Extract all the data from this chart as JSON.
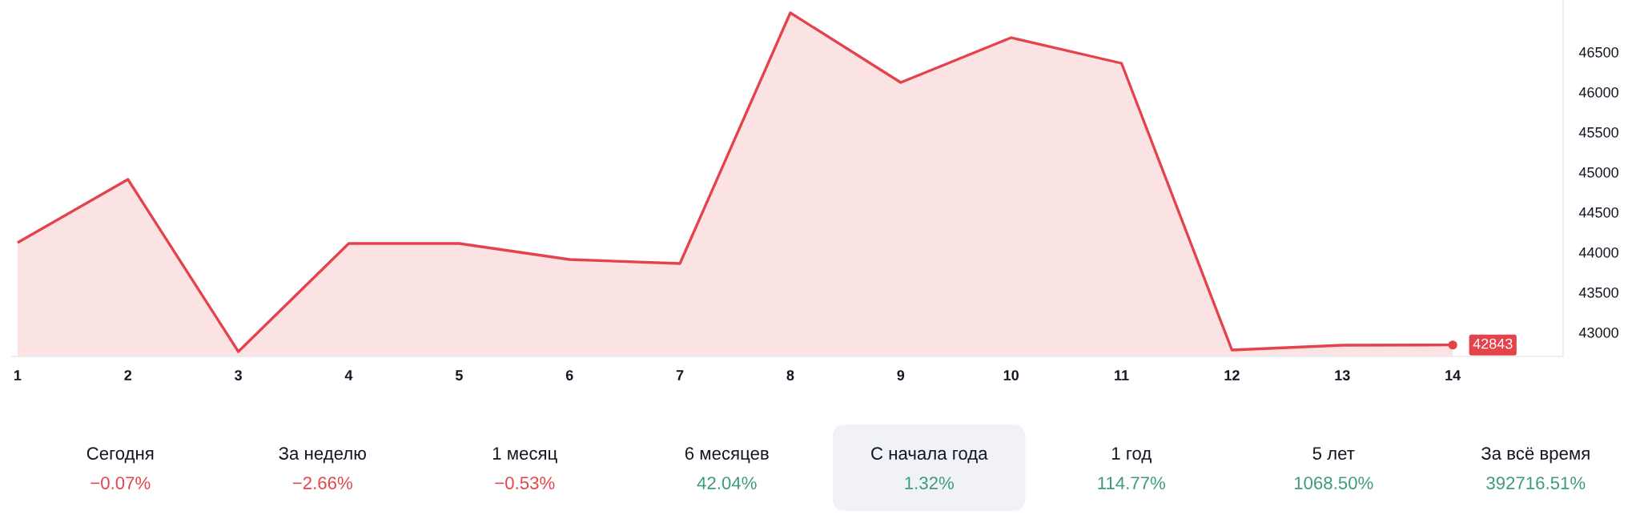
{
  "chart_data": [
    {
      "type": "area",
      "x": [
        1,
        2,
        3,
        4,
        5,
        6,
        7,
        8,
        9,
        10,
        11,
        12,
        13,
        14
      ],
      "series": [
        {
          "type": "area",
          "color": "#e5434b",
          "values": [
            44120,
            44910,
            42760,
            44110,
            44110,
            43910,
            43860,
            46990,
            46120,
            46680,
            46360,
            42780,
            42840,
            42843
          ],
          "value_labels": [
            null,
            null,
            null,
            null,
            null,
            null,
            null,
            null,
            null,
            null,
            null,
            null,
            null,
            "42843"
          ]
        }
      ],
      "xlim": [
        0.95,
        15
      ],
      "xticks": [
        1,
        2,
        3,
        4,
        5,
        6,
        7,
        8,
        9,
        10,
        11,
        12,
        13,
        14
      ],
      "ylim": [
        42700,
        47150
      ],
      "yticks": [
        43000,
        43500,
        44000,
        44500,
        45000,
        45500,
        46000,
        46500
      ]
    },
    {
      "type": "other",
      "categories": [
        "Сегодня",
        "За неделю",
        "1 месяц",
        "6 месяцев",
        "С начала года",
        "1 год",
        "5 лет",
        "За всё время"
      ],
      "value_labels": [
        "−0.07%",
        "−2.66%",
        "−0.53%",
        "42.04%",
        "1.32%",
        "114.77%",
        "1068.50%",
        "392716.51%"
      ],
      "colors": [
        "#e5434b",
        "#e5434b",
        "#e5434b",
        "#3b9b7c",
        "#3b9b7c",
        "#3b9b7c",
        "#3b9b7c",
        "#3b9b7c"
      ]
    }
  ]
}
